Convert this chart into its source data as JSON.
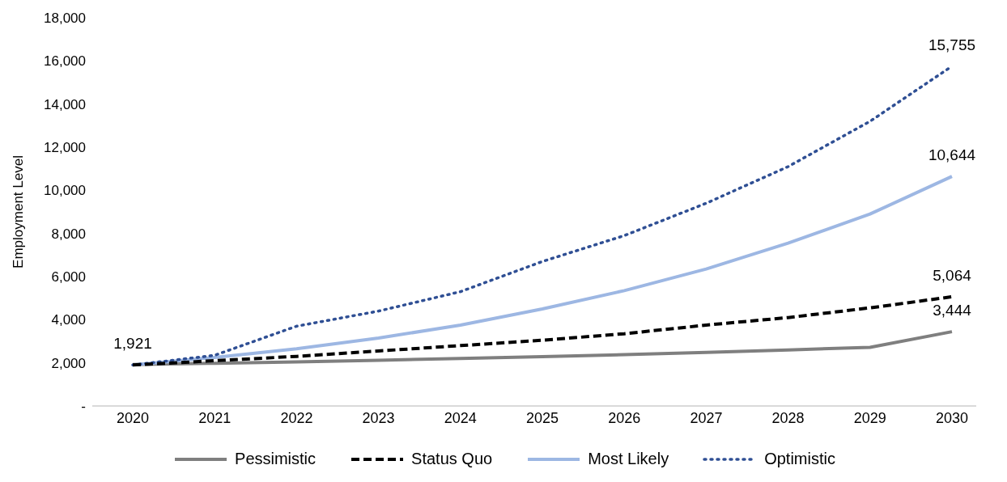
{
  "chart_data": {
    "type": "line",
    "ylabel": "Employment Level",
    "categories": [
      "2020",
      "2021",
      "2022",
      "2023",
      "2024",
      "2025",
      "2026",
      "2027",
      "2028",
      "2029",
      "2030"
    ],
    "ylim": [
      0,
      18000
    ],
    "yticks": [
      {
        "value": 0,
        "label": "-"
      },
      {
        "value": 2000,
        "label": "2,000"
      },
      {
        "value": 4000,
        "label": "4,000"
      },
      {
        "value": 6000,
        "label": "6,000"
      },
      {
        "value": 8000,
        "label": "8,000"
      },
      {
        "value": 10000,
        "label": "10,000"
      },
      {
        "value": 12000,
        "label": "12,000"
      },
      {
        "value": 14000,
        "label": "14,000"
      },
      {
        "value": 16000,
        "label": "16,000"
      },
      {
        "value": 18000,
        "label": "18,000"
      }
    ],
    "grid": false,
    "legend": "bottom",
    "marker": "none",
    "series": [
      {
        "name": "Pessimistic",
        "color": "#7f7f7f",
        "line_style": "solid",
        "values": [
          1921,
          1980,
          2040,
          2120,
          2200,
          2290,
          2380,
          2480,
          2600,
          2720,
          3444
        ],
        "value_labels": [
          "1,921",
          null,
          null,
          null,
          null,
          null,
          null,
          null,
          null,
          null,
          "3,444"
        ]
      },
      {
        "name": "Status Quo",
        "color": "#000000",
        "line_style": "dashed",
        "values": [
          1900,
          2100,
          2300,
          2550,
          2800,
          3050,
          3350,
          3750,
          4100,
          4550,
          5064
        ],
        "value_labels": [
          null,
          null,
          null,
          null,
          null,
          null,
          null,
          null,
          null,
          null,
          "5,064"
        ]
      },
      {
        "name": "Most Likely",
        "color": "#9db7e3",
        "line_style": "solid",
        "values": [
          1900,
          2250,
          2650,
          3150,
          3750,
          4500,
          5350,
          6350,
          7550,
          8900,
          10644
        ],
        "value_labels": [
          null,
          null,
          null,
          null,
          null,
          null,
          null,
          null,
          null,
          null,
          "10,644"
        ]
      },
      {
        "name": "Optimistic",
        "color": "#2f4f94",
        "line_style": "dotted",
        "values": [
          1900,
          2350,
          3700,
          4400,
          5300,
          6700,
          7900,
          9400,
          11100,
          13200,
          15755
        ],
        "value_labels": [
          null,
          null,
          null,
          null,
          null,
          null,
          null,
          null,
          null,
          null,
          "15,755"
        ]
      }
    ]
  }
}
